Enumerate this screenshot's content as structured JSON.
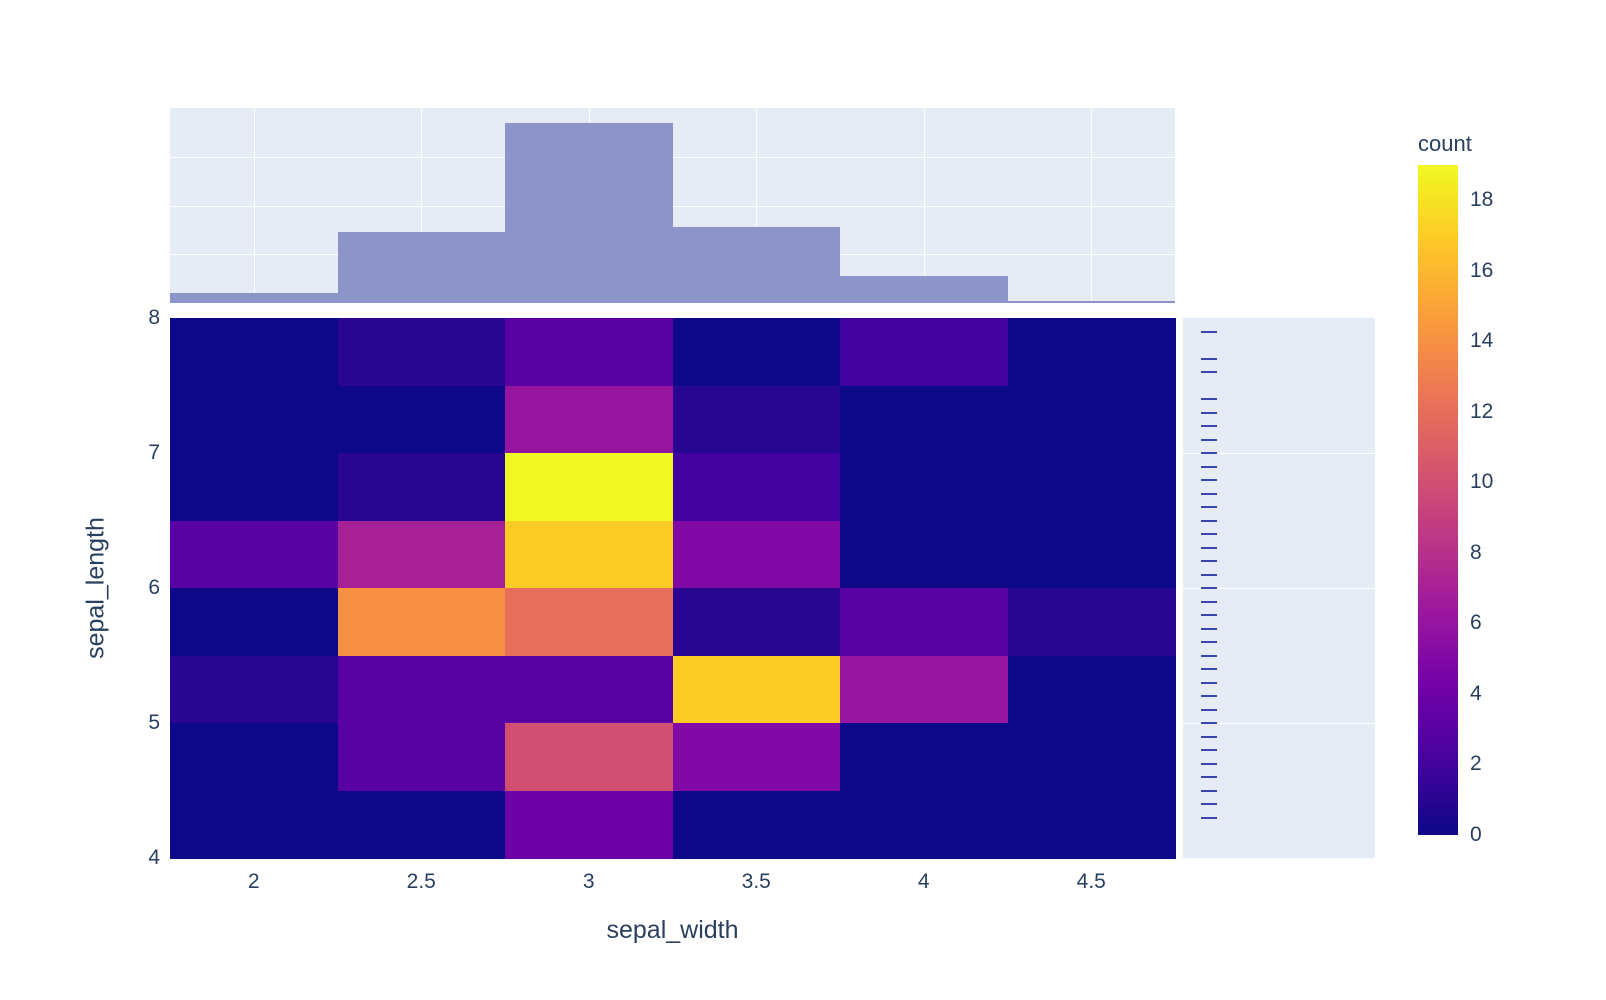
{
  "colors": {
    "panel_background": "#e5ecf6",
    "histogram_bar": "#8c94ca",
    "rug_mark": "#3a45b0",
    "axis_text": "#2a3f5f",
    "zero_count": "#0d0887",
    "max_count": "#f0f921"
  },
  "chart_data": {
    "type": "heatmap",
    "title": "",
    "xlabel": "sepal_width",
    "ylabel": "sepal_length",
    "colorbar_title": "count",
    "xlim": [
      1.75,
      4.75
    ],
    "ylim": [
      4,
      8
    ],
    "x_bin_centers": [
      2,
      2.5,
      3,
      3.5,
      4,
      4.5
    ],
    "y_bin_edges": [
      4,
      4.5,
      5,
      5.5,
      6,
      6.5,
      7,
      7.5,
      8
    ],
    "x_tick_values": [
      2,
      2.5,
      3,
      3.5,
      4,
      4.5
    ],
    "x_tick_labels": [
      "2",
      "2.5",
      "3",
      "3.5",
      "4",
      "4.5"
    ],
    "y_tick_values": [
      8,
      7,
      6,
      5,
      4
    ],
    "y_tick_labels": [
      "8",
      "7",
      "6",
      "5",
      "4"
    ],
    "zmax": 19,
    "counts_rows_top_to_bottom": [
      [
        0,
        1,
        3,
        0,
        2,
        0
      ],
      [
        0,
        0,
        6,
        1,
        0,
        0
      ],
      [
        0,
        1,
        19,
        2,
        0,
        0
      ],
      [
        3,
        7,
        17,
        5,
        0,
        0
      ],
      [
        0,
        14,
        12,
        1,
        3,
        1
      ],
      [
        1,
        3,
        3,
        17,
        6,
        0
      ],
      [
        0,
        3,
        10,
        5,
        0,
        0
      ],
      [
        0,
        0,
        4,
        0,
        0,
        0
      ]
    ],
    "colorscale_plasma": [
      "#0d0887",
      "#46039f",
      "#7201a8",
      "#9c179e",
      "#bd3786",
      "#d8576b",
      "#ed7953",
      "#fb9f3a",
      "#fdca26",
      "#f0f921"
    ],
    "colorbar_ticks": [
      0,
      2,
      4,
      6,
      8,
      10,
      12,
      14,
      16,
      18
    ],
    "colorbar_tick_labels": [
      "0",
      "2",
      "4",
      "6",
      "8",
      "10",
      "12",
      "14",
      "16",
      "18"
    ],
    "marginal_x_histogram": {
      "bin_centers": [
        2,
        2.5,
        3,
        3.5,
        4,
        4.5
      ],
      "counts": [
        4,
        29,
        74,
        31,
        11,
        1
      ],
      "ymax": 80,
      "gridlines": [
        20,
        40,
        60
      ]
    },
    "marginal_y_rug": {
      "gridlines": [
        7,
        6,
        5
      ],
      "values": [
        4.3,
        4.4,
        4.5,
        4.6,
        4.7,
        4.8,
        4.9,
        5.0,
        5.1,
        5.2,
        5.3,
        5.4,
        5.5,
        5.6,
        5.7,
        5.8,
        5.9,
        6.0,
        6.1,
        6.2,
        6.3,
        6.4,
        6.5,
        6.6,
        6.7,
        6.8,
        6.9,
        7.0,
        7.1,
        7.2,
        7.3,
        7.4,
        7.6,
        7.7,
        7.9
      ]
    }
  }
}
